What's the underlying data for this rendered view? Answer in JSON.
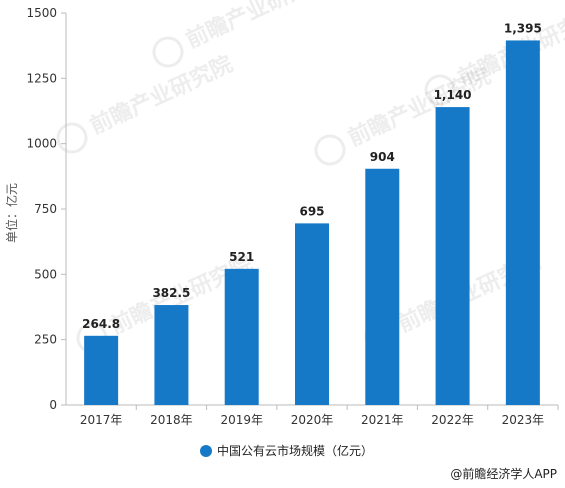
{
  "chart_data": {
    "type": "bar",
    "categories": [
      "2017年",
      "2018年",
      "2019年",
      "2020年",
      "2021年",
      "2022年",
      "2023年"
    ],
    "values": [
      264.8,
      382.5,
      521,
      695,
      904,
      1140,
      1395
    ],
    "value_labels": [
      "264.8",
      "382.5",
      "521",
      "695",
      "904",
      "1,140",
      "1,395"
    ],
    "series": [
      {
        "name": "中国公有云市场规模（亿元）",
        "values": [
          264.8,
          382.5,
          521,
          695,
          904,
          1140,
          1395
        ]
      }
    ],
    "ylabel": "单位：亿元",
    "ylim": [
      0,
      1500
    ],
    "yticks": [
      0,
      250,
      500,
      750,
      1000,
      1250,
      1500
    ],
    "grid": false,
    "legend_position": "bottom-center",
    "bar_color": "#1679c8",
    "axis_color": "#bbbbbb"
  },
  "watermark": "前瞻产业研究院",
  "source": "@前瞻经济学人APP"
}
